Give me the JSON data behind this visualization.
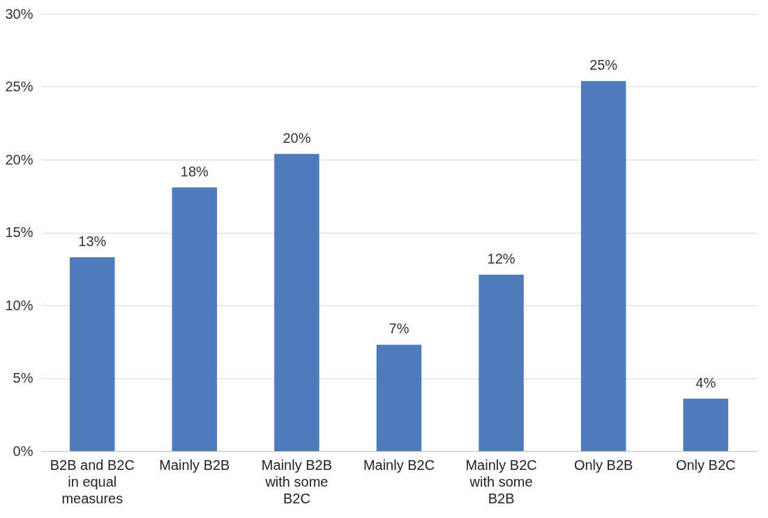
{
  "chart_data": {
    "type": "bar",
    "categories": [
      "B2B and B2C in equal measures",
      "Mainly B2B",
      "Mainly B2B with some B2C",
      "Mainly B2C",
      "Mainly B2C with some B2B",
      "Only B2B",
      "Only B2C"
    ],
    "values": [
      13.3,
      18.1,
      20.4,
      7.3,
      12.1,
      25.4,
      3.6
    ],
    "value_labels": [
      "13%",
      "18%",
      "20%",
      "7%",
      "12%",
      "25%",
      "4%"
    ],
    "color": "#4e7bbb",
    "ylim": [
      0,
      30
    ],
    "yticks": [
      {
        "value": 0,
        "label": "0%"
      },
      {
        "value": 5,
        "label": "5%"
      },
      {
        "value": 10,
        "label": "10%"
      },
      {
        "value": 15,
        "label": "15%"
      },
      {
        "value": 20,
        "label": "20%"
      },
      {
        "value": 25,
        "label": "25%"
      },
      {
        "value": 30,
        "label": "30%"
      }
    ],
    "grid": "y"
  }
}
